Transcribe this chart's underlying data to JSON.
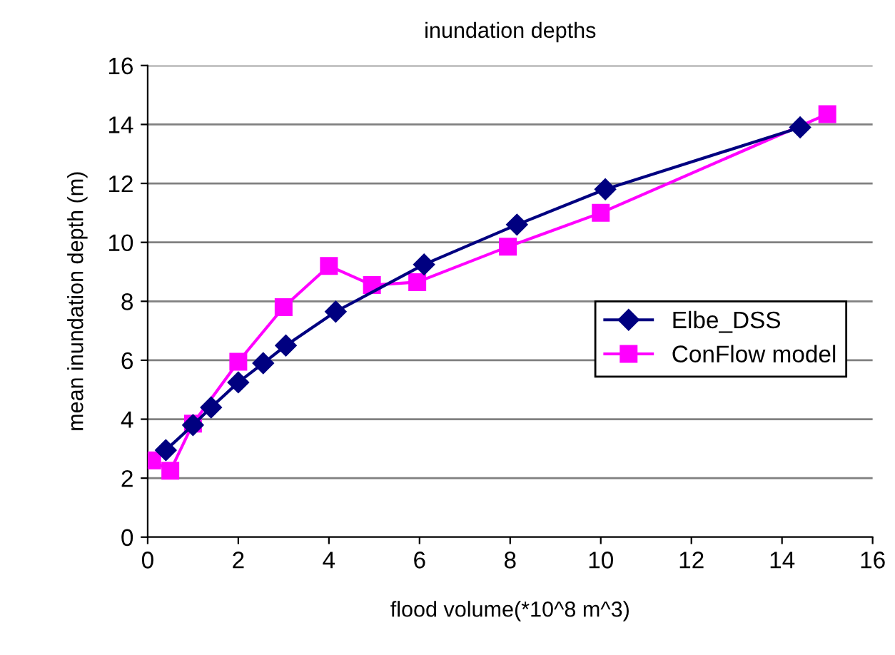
{
  "chart_data": {
    "type": "line",
    "title": "inundation depths",
    "xlabel": "flood volume(*10^8 m^3)",
    "ylabel": "mean inundation depth (m)",
    "xlim": [
      0,
      16
    ],
    "xticks": [
      0,
      2,
      4,
      6,
      8,
      10,
      12,
      14,
      16
    ],
    "ylim": [
      0,
      16
    ],
    "yticks": [
      0,
      2,
      4,
      6,
      8,
      10,
      12,
      14,
      16
    ],
    "grid": "y",
    "legend": "right",
    "series": [
      {
        "name": "Elbe_DSS",
        "color": "#000080",
        "marker": "diamond",
        "x": [
          0.4,
          1.0,
          1.4,
          2.0,
          2.55,
          3.05,
          4.15,
          6.1,
          8.15,
          10.1,
          14.4
        ],
        "values": [
          2.95,
          3.8,
          4.4,
          5.25,
          5.9,
          6.5,
          7.65,
          9.25,
          10.6,
          11.8,
          13.9
        ]
      },
      {
        "name": "ConFlow model",
        "color": "#ff00ff",
        "marker": "square",
        "x": [
          0.1,
          0.5,
          1.0,
          2.0,
          3.0,
          4.0,
          4.95,
          5.95,
          7.95,
          10.0,
          15.0
        ],
        "values": [
          2.6,
          2.25,
          3.85,
          5.95,
          7.8,
          9.2,
          8.55,
          8.65,
          9.85,
          11.0,
          14.35
        ]
      }
    ]
  }
}
